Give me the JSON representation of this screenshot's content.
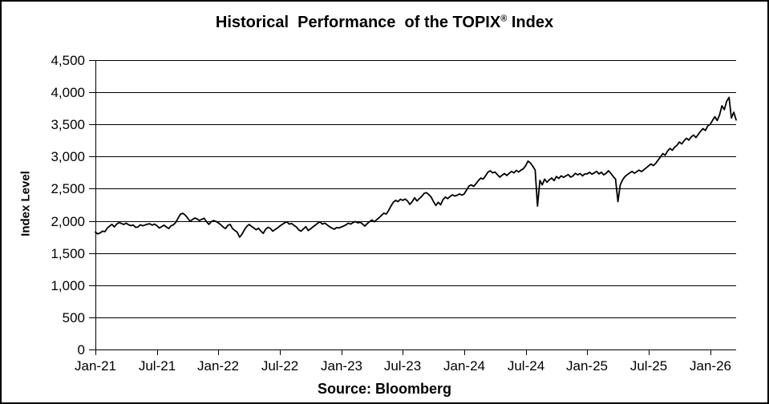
{
  "page": {
    "background": "#ffffff",
    "border_color": "#000000"
  },
  "chart_data": {
    "type": "line",
    "title": "Historical Performance of the TOPIX® Index",
    "title_parts": {
      "pre": "Historical  Performance  of the TOPIX",
      "sup": "®",
      "post": " Index"
    },
    "ylabel": "Index Level",
    "xlabel": "",
    "source": "Source: Bloomberg",
    "ylim": [
      0,
      4500
    ],
    "ytick_values": [
      0,
      500,
      1000,
      1500,
      2000,
      2500,
      3000,
      3500,
      4000,
      4500
    ],
    "ytick_labels": [
      "0",
      "500",
      "1,000",
      "1,500",
      "2,000",
      "2,500",
      "3,000",
      "3,500",
      "4,000",
      "4,500"
    ],
    "x_start_year": 2021,
    "points_per_year": 52,
    "xticks": [
      {
        "pos": 2021.0,
        "label": "Jan-21"
      },
      {
        "pos": 2021.5,
        "label": "Jul-21"
      },
      {
        "pos": 2022.0,
        "label": "Jan-22"
      },
      {
        "pos": 2022.5,
        "label": "Jul-22"
      },
      {
        "pos": 2023.0,
        "label": "Jan-23"
      },
      {
        "pos": 2023.5,
        "label": "Jul-23"
      },
      {
        "pos": 2024.0,
        "label": "Jan-24"
      },
      {
        "pos": 2024.5,
        "label": "Jul-24"
      },
      {
        "pos": 2025.0,
        "label": "Jan-25"
      },
      {
        "pos": 2025.5,
        "label": "Jul-25"
      },
      {
        "pos": 2026.0,
        "label": "Jan-26"
      }
    ],
    "grid": true,
    "legend": "none",
    "line_color": "#000000",
    "series": [
      {
        "name": "TOPIX",
        "values": [
          1825,
          1798,
          1812,
          1840,
          1832,
          1886,
          1920,
          1946,
          1906,
          1950,
          1974,
          1960,
          1944,
          1964,
          1940,
          1926,
          1936,
          1900,
          1906,
          1940,
          1924,
          1936,
          1950,
          1954,
          1934,
          1950,
          1926,
          1890,
          1910,
          1934,
          1906,
          1880,
          1924,
          1940,
          1976,
          2046,
          2106,
          2118,
          2090,
          2044,
          1996,
          2020,
          2044,
          2030,
          2004,
          2024,
          2040,
          1986,
          1946,
          1990,
          2004,
          1992,
          1970,
          1940,
          1906,
          1880,
          1930,
          1944,
          1880,
          1850,
          1824,
          1746,
          1792,
          1860,
          1914,
          1944,
          1916,
          1890,
          1862,
          1886,
          1840,
          1806,
          1870,
          1900,
          1884,
          1840,
          1866,
          1890,
          1920,
          1944,
          1970,
          1984,
          1950,
          1960,
          1930,
          1906,
          1860,
          1840,
          1876,
          1910,
          1850,
          1876,
          1906,
          1934,
          1964,
          1984,
          1950,
          1964,
          1940,
          1910,
          1890,
          1870,
          1896,
          1890,
          1906,
          1920,
          1940,
          1964,
          1950,
          1976,
          1990,
          1970,
          1980,
          1950,
          1920,
          1960,
          1990,
          2014,
          1986,
          2020,
          2050,
          2086,
          2120,
          2106,
          2160,
          2230,
          2290,
          2320,
          2300,
          2336,
          2320,
          2340,
          2310,
          2256,
          2300,
          2360,
          2310,
          2346,
          2380,
          2426,
          2440,
          2410,
          2370,
          2300,
          2240,
          2290,
          2250,
          2330,
          2370,
          2346,
          2380,
          2406,
          2386,
          2400,
          2420,
          2400,
          2420,
          2480,
          2540,
          2560,
          2536,
          2580,
          2626,
          2666,
          2650,
          2700,
          2756,
          2780,
          2746,
          2760,
          2720,
          2680,
          2710,
          2736,
          2706,
          2740,
          2770,
          2746,
          2786,
          2760,
          2790,
          2810,
          2860,
          2930,
          2900,
          2850,
          2790,
          2230,
          2630,
          2560,
          2650,
          2600,
          2640,
          2666,
          2626,
          2690,
          2660,
          2700,
          2676,
          2700,
          2720,
          2680,
          2700,
          2740,
          2716,
          2736,
          2700,
          2730,
          2730,
          2756,
          2726,
          2746,
          2770,
          2730,
          2756,
          2716,
          2740,
          2780,
          2740,
          2690,
          2650,
          2300,
          2560,
          2640,
          2690,
          2720,
          2746,
          2770,
          2740,
          2766,
          2790,
          2766,
          2796,
          2826,
          2856,
          2886,
          2860,
          2896,
          2946,
          2996,
          3046,
          3020,
          3086,
          3126,
          3096,
          3146,
          3176,
          3226,
          3196,
          3246,
          3286,
          3256,
          3306,
          3336,
          3296,
          3346,
          3396,
          3436,
          3406,
          3476,
          3500,
          3560,
          3620,
          3560,
          3650,
          3790,
          3730,
          3860,
          3920,
          3600,
          3690,
          3570
        ]
      }
    ]
  }
}
